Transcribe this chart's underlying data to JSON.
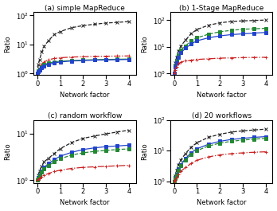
{
  "x": [
    0,
    0.05,
    0.1,
    0.2,
    0.3,
    0.5,
    0.75,
    1.0,
    1.5,
    2.0,
    2.5,
    3.0,
    3.5,
    4.0
  ],
  "subplots": [
    {
      "title": "(a) simple MapReduce",
      "lines": [
        {
          "label": "black_x",
          "color": "#222222",
          "linestyle": "--",
          "marker": "x",
          "y": [
            1.0,
            2.0,
            3.0,
            5.5,
            8.5,
            14.0,
            22.0,
            28.0,
            38.0,
            45.0,
            50.0,
            55.0,
            58.0,
            62.0
          ]
        },
        {
          "label": "red",
          "color": "#cc2222",
          "linestyle": "-.",
          "marker": "+",
          "y": [
            1.0,
            1.3,
            1.6,
            2.1,
            2.5,
            3.0,
            3.3,
            3.5,
            3.7,
            3.8,
            3.9,
            3.95,
            4.0,
            4.05
          ]
        },
        {
          "label": "green",
          "color": "#228833",
          "linestyle": "-",
          "marker": "s",
          "y": [
            1.0,
            1.2,
            1.4,
            1.7,
            2.0,
            2.3,
            2.5,
            2.65,
            2.8,
            2.9,
            3.0,
            3.05,
            3.1,
            3.15
          ]
        },
        {
          "label": "blue",
          "color": "#2244cc",
          "linestyle": "-",
          "marker": "s",
          "y": [
            1.0,
            1.15,
            1.3,
            1.6,
            1.85,
            2.1,
            2.3,
            2.5,
            2.7,
            2.8,
            2.9,
            2.95,
            3.0,
            3.05
          ]
        }
      ],
      "ylim": [
        0.88,
        130
      ],
      "yticks": [
        1,
        10,
        100
      ]
    },
    {
      "title": "(b) 1-Stage MapReduce",
      "lines": [
        {
          "label": "black_x",
          "color": "#222222",
          "linestyle": "--",
          "marker": "x",
          "y": [
            1.0,
            2.5,
            4.0,
            7.0,
            11.0,
            18.0,
            32.0,
            45.0,
            65.0,
            80.0,
            90.0,
            95.0,
            98.0,
            102.0
          ]
        },
        {
          "label": "green",
          "color": "#228833",
          "linestyle": "--",
          "marker": "s",
          "y": [
            1.0,
            2.0,
            3.0,
            5.0,
            7.5,
            11.0,
            17.0,
            22.0,
            30.0,
            37.0,
            42.0,
            46.0,
            48.0,
            50.0
          ]
        },
        {
          "label": "blue",
          "color": "#2244cc",
          "linestyle": "-",
          "marker": "s",
          "y": [
            1.0,
            1.8,
            2.5,
            4.0,
            6.0,
            9.0,
            13.0,
            17.0,
            22.0,
            26.0,
            29.0,
            31.0,
            33.0,
            35.0
          ]
        },
        {
          "label": "red",
          "color": "#cc2222",
          "linestyle": "-.",
          "marker": "+",
          "y": [
            1.0,
            1.4,
            1.8,
            2.3,
            2.7,
            3.0,
            3.2,
            3.4,
            3.6,
            3.8,
            3.9,
            4.0,
            4.05,
            4.1
          ]
        }
      ],
      "ylim": [
        0.88,
        200
      ],
      "yticks": [
        1,
        10,
        100
      ]
    },
    {
      "title": "(c) random workflow",
      "lines": [
        {
          "label": "black_x",
          "color": "#222222",
          "linestyle": "--",
          "marker": "x",
          "y": [
            1.0,
            1.3,
            1.6,
            2.0,
            2.5,
            3.0,
            3.8,
            4.8,
            6.5,
            8.0,
            9.0,
            10.0,
            11.0,
            12.0
          ]
        },
        {
          "label": "blue",
          "color": "#2244cc",
          "linestyle": "-",
          "marker": "s",
          "y": [
            1.0,
            1.15,
            1.3,
            1.6,
            1.9,
            2.3,
            2.8,
            3.3,
            4.0,
            4.6,
            5.0,
            5.3,
            5.5,
            5.7
          ]
        },
        {
          "label": "green",
          "color": "#228833",
          "linestyle": "--",
          "marker": "s",
          "y": [
            1.0,
            1.1,
            1.25,
            1.5,
            1.8,
            2.1,
            2.5,
            2.9,
            3.5,
            3.9,
            4.2,
            4.4,
            4.6,
            4.75
          ]
        },
        {
          "label": "red",
          "color": "#cc2222",
          "linestyle": "-.",
          "marker": "+",
          "y": [
            1.0,
            1.05,
            1.1,
            1.2,
            1.3,
            1.4,
            1.55,
            1.65,
            1.8,
            1.9,
            1.95,
            2.0,
            2.05,
            2.1
          ]
        }
      ],
      "ylim": [
        0.88,
        20
      ],
      "yticks": [
        1,
        10
      ]
    },
    {
      "title": "(d) 20 workflows",
      "lines": [
        {
          "label": "black_x",
          "color": "#222222",
          "linestyle": "--",
          "marker": "x",
          "y": [
            1.0,
            1.5,
            2.2,
            3.5,
            5.0,
            8.0,
            13.0,
            18.0,
            27.0,
            34.0,
            40.0,
            44.0,
            47.0,
            50.0
          ]
        },
        {
          "label": "blue",
          "color": "#2244cc",
          "linestyle": "-",
          "marker": "s",
          "y": [
            1.0,
            1.3,
            1.7,
            2.5,
            3.5,
            5.5,
            8.5,
            11.5,
            16.0,
            20.0,
            23.0,
            25.0,
            27.0,
            28.5
          ]
        },
        {
          "label": "green",
          "color": "#228833",
          "linestyle": "--",
          "marker": "s",
          "y": [
            1.0,
            1.25,
            1.6,
            2.3,
            3.2,
            5.0,
            7.5,
            10.0,
            14.0,
            17.5,
            20.0,
            22.0,
            23.5,
            25.0
          ]
        },
        {
          "label": "red",
          "color": "#cc2222",
          "linestyle": "-.",
          "marker": "+",
          "y": [
            1.0,
            1.1,
            1.3,
            1.7,
            2.1,
            2.8,
            3.8,
            4.8,
            6.2,
            7.2,
            7.9,
            8.4,
            8.8,
            9.1
          ]
        }
      ],
      "ylim": [
        0.88,
        100
      ],
      "yticks": [
        1,
        10,
        100
      ]
    }
  ],
  "xlabel": "Network factor",
  "ylabel": "Ratio",
  "marker_size": 2.5,
  "linewidth": 0.9,
  "title_fontsize": 6.5,
  "label_fontsize": 6,
  "tick_fontsize": 6
}
